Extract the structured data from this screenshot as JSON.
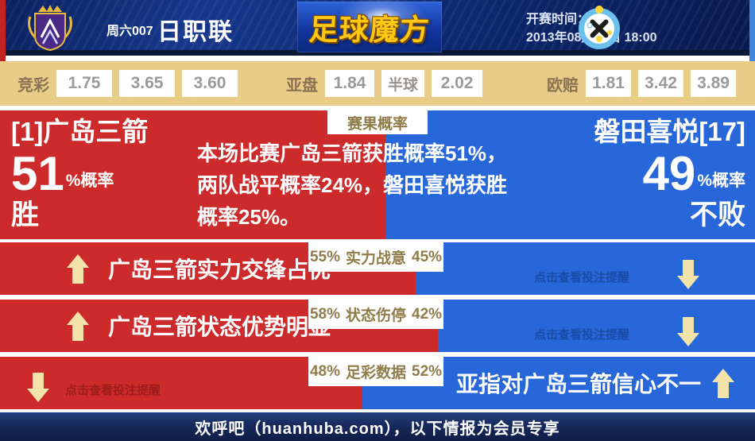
{
  "header": {
    "match_code": "周六007",
    "league_name": "日职联",
    "brand_name": "足球魔方",
    "kickoff_label": "开赛时间：",
    "kickoff_time": "2013年08月10日 18:00"
  },
  "odds_bar": {
    "jingcai_label": "竞彩",
    "jingcai_win": "1.75",
    "jingcai_draw": "3.65",
    "jingcai_lose": "3.60",
    "yapan_label": "亚盘",
    "yapan_home": "1.84",
    "yapan_handicap": "半球",
    "yapan_away": "2.02",
    "oupei_label": "欧赔",
    "oupei_win": "1.81",
    "oupei_draw": "3.42",
    "oupei_lose": "3.89"
  },
  "result_panel": {
    "badge": "赛果概率",
    "home_name": "[1]广岛三箭",
    "home_percent": "51",
    "home_percent_suffix": "%概率",
    "home_outcome": "胜",
    "home_ratio": 51,
    "away_name": "磐田喜悦[17]",
    "away_percent": "49",
    "away_percent_suffix": "%概率",
    "away_outcome": "不败",
    "summary": "本场比赛广岛三箭获胜概率51%，两队战平概率24%，磐田喜悦获胜概率25%。"
  },
  "factors": [
    {
      "home_pct": "55%",
      "name": "实力战意",
      "away_pct": "45%",
      "ratio": 55,
      "left_note": "广岛三箭实力交锋占优",
      "right_note": "点击查看投注提醒"
    },
    {
      "home_pct": "58%",
      "name": "状态伤停",
      "away_pct": "42%",
      "ratio": 58,
      "left_note": "广岛三箭状态优势明显",
      "right_note": "点击查看投注提醒"
    },
    {
      "home_pct": "48%",
      "name": "足彩数据",
      "away_pct": "52%",
      "ratio": 48,
      "left_note": "点击查看投注提醒",
      "right_note": "亚指对广岛三箭信心不一"
    }
  ],
  "footer": {
    "text": "欢呼吧（huanhuba.com），以下情报为会员专享"
  },
  "colors": {
    "home_red": "#cd2b2b",
    "away_blue": "#2767d9",
    "odds_beige": "#e8cc88",
    "arrow_cream": "#f3e3a8",
    "label_khaki": "#8f7c49",
    "footer_navy": "#17295c",
    "brand_gold": "#ffc814"
  }
}
